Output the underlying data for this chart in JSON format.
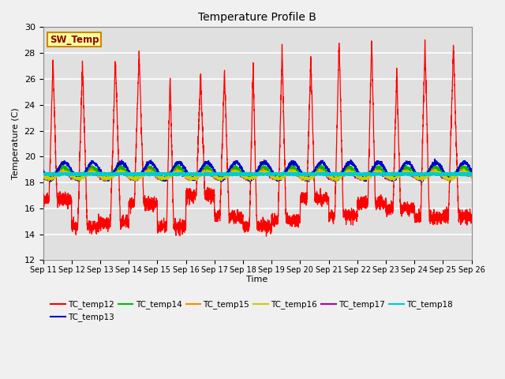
{
  "title": "Temperature Profile B",
  "xlabel": "Time",
  "ylabel": "Temperature (C)",
  "ylim": [
    12,
    30
  ],
  "yticks": [
    12,
    14,
    16,
    18,
    20,
    22,
    24,
    26,
    28,
    30
  ],
  "x_tick_labels": [
    "Sep 11",
    "Sep 12",
    "Sep 13",
    "Sep 14",
    "Sep 15",
    "Sep 16",
    "Sep 17",
    "Sep 18",
    "Sep 19",
    "Sep 20",
    "Sep 21",
    "Sep 22",
    "Sep 23",
    "Sep 24",
    "Sep 25",
    "Sep 26"
  ],
  "sw_temp_label": "SW_Temp",
  "sw_temp_box_color": "#ffff99",
  "sw_temp_border_color": "#cc8800",
  "sw_temp_text_color": "#8B0000",
  "fig_bg_color": "#f0f0f0",
  "plot_bg_color": "#e0e0e0",
  "grid_color": "#ffffff",
  "series_colors": {
    "TC_temp12": "#ff0000",
    "TC_temp13": "#0000cc",
    "TC_temp14": "#00bb00",
    "TC_temp15": "#ff8800",
    "TC_temp16": "#cccc00",
    "TC_temp17": "#aa00aa",
    "TC_temp18": "#00cccc"
  },
  "n_days": 15,
  "ppd": 288,
  "base_temp": 18.7,
  "sw_amp_low": 5.0,
  "sw_amp_high": 7.0
}
